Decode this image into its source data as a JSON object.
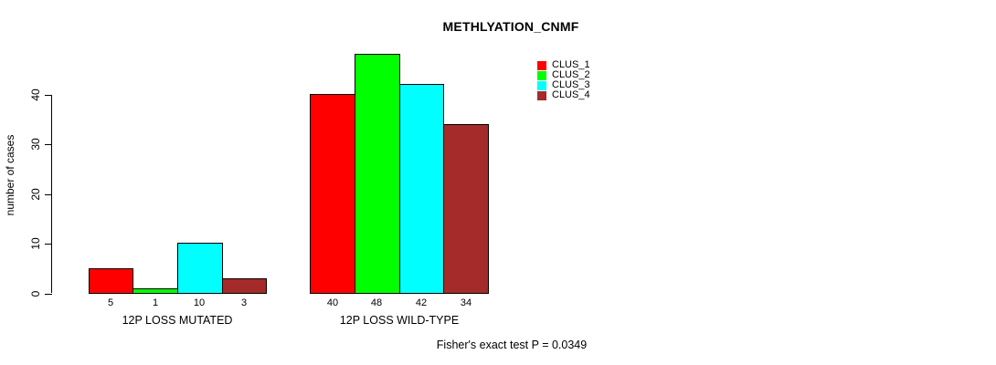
{
  "chart_data": {
    "type": "bar",
    "title": "METHLYATION_CNMF",
    "xlabel": "",
    "ylabel": "number of cases",
    "categories": [
      "12P LOSS MUTATED",
      "12P LOSS WILD-TYPE"
    ],
    "series": [
      {
        "name": "CLUS_1",
        "color": "#FF0000",
        "values": [
          5,
          40
        ]
      },
      {
        "name": "CLUS_2",
        "color": "#00FF00",
        "values": [
          1,
          48
        ]
      },
      {
        "name": "CLUS_3",
        "color": "#00FFFF",
        "values": [
          10,
          42
        ]
      },
      {
        "name": "CLUS_4",
        "color": "#A52A2A",
        "values": [
          3,
          34
        ]
      }
    ],
    "yticks": [
      0,
      10,
      20,
      30,
      40
    ],
    "ylim": [
      0,
      48
    ],
    "grid": false,
    "bar_value_labels_shown": true,
    "legend": {
      "position": "top-right",
      "entries": [
        "CLUS_1",
        "CLUS_2",
        "CLUS_3",
        "CLUS_4"
      ]
    },
    "annotation": "Fisher's exact test P = 0.0349",
    "bar_border_color": "#000000",
    "background": "#FFFFFF",
    "text_color": "#000000"
  }
}
